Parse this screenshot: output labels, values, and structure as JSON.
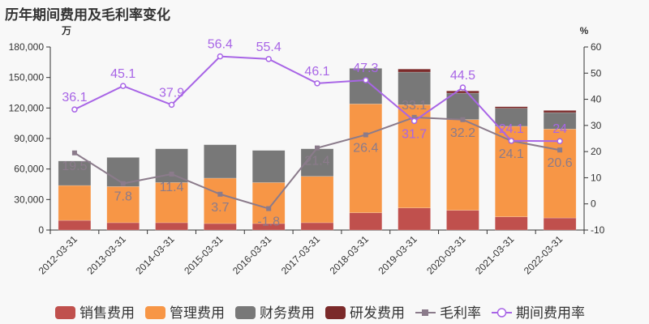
{
  "title": "历年期间费用及毛利率变化",
  "chart_data": {
    "type": "bar",
    "title": "历年期间费用及毛利率变化",
    "stacked": true,
    "ylabel_left": "万",
    "ylabel_right": "%",
    "ylim_left": [
      0,
      180000
    ],
    "yticks_left": [
      "0",
      "30,000",
      "60,000",
      "90,000",
      "120,000",
      "150,000",
      "180,000"
    ],
    "ylim_right": [
      -10,
      60
    ],
    "yticks_right": [
      "-10",
      "0",
      "10",
      "20",
      "30",
      "40",
      "50",
      "60"
    ],
    "categories": [
      "2012-03-31",
      "2013-03-31",
      "2014-03-31",
      "2015-03-31",
      "2016-03-31",
      "2017-03-31",
      "2018-03-31",
      "2019-03-31",
      "2020-03-31",
      "2021-03-31",
      "2022-03-31"
    ],
    "series": [
      {
        "name": "销售费用",
        "type": "bar",
        "color": "#c0504d",
        "values": [
          9500,
          7200,
          7200,
          6400,
          6400,
          7200,
          17000,
          21700,
          19400,
          13000,
          11900
        ]
      },
      {
        "name": "管理费用",
        "type": "bar",
        "color": "#f79646",
        "values": [
          34300,
          35600,
          39500,
          44600,
          40300,
          45600,
          107000,
          101500,
          89200,
          89000,
          87400
        ]
      },
      {
        "name": "财务费用",
        "type": "bar",
        "color": "#787878",
        "values": [
          24100,
          28600,
          33200,
          32900,
          31600,
          27100,
          35000,
          32100,
          26000,
          17700,
          16200
        ]
      },
      {
        "name": "研发费用",
        "type": "bar",
        "color": "#7b2a2a",
        "values": [
          0,
          0,
          0,
          0,
          0,
          0,
          0,
          3000,
          2200,
          1600,
          2100
        ]
      },
      {
        "name": "毛利率",
        "type": "line",
        "axis": "right",
        "color": "#8b7b8b",
        "marker": "square",
        "values": [
          19.5,
          7.8,
          11.4,
          3.7,
          -1.8,
          21.4,
          26.4,
          33.1,
          32.2,
          24.1,
          20.6
        ]
      },
      {
        "name": "期间费用率",
        "type": "line",
        "axis": "right",
        "color": "#a865e6",
        "marker": "circle",
        "values": [
          36.1,
          45.1,
          37.9,
          56.4,
          55.4,
          46.1,
          47.3,
          31.7,
          44.5,
          24.1,
          24
        ]
      }
    ],
    "legend": "bottom",
    "grid": false
  }
}
